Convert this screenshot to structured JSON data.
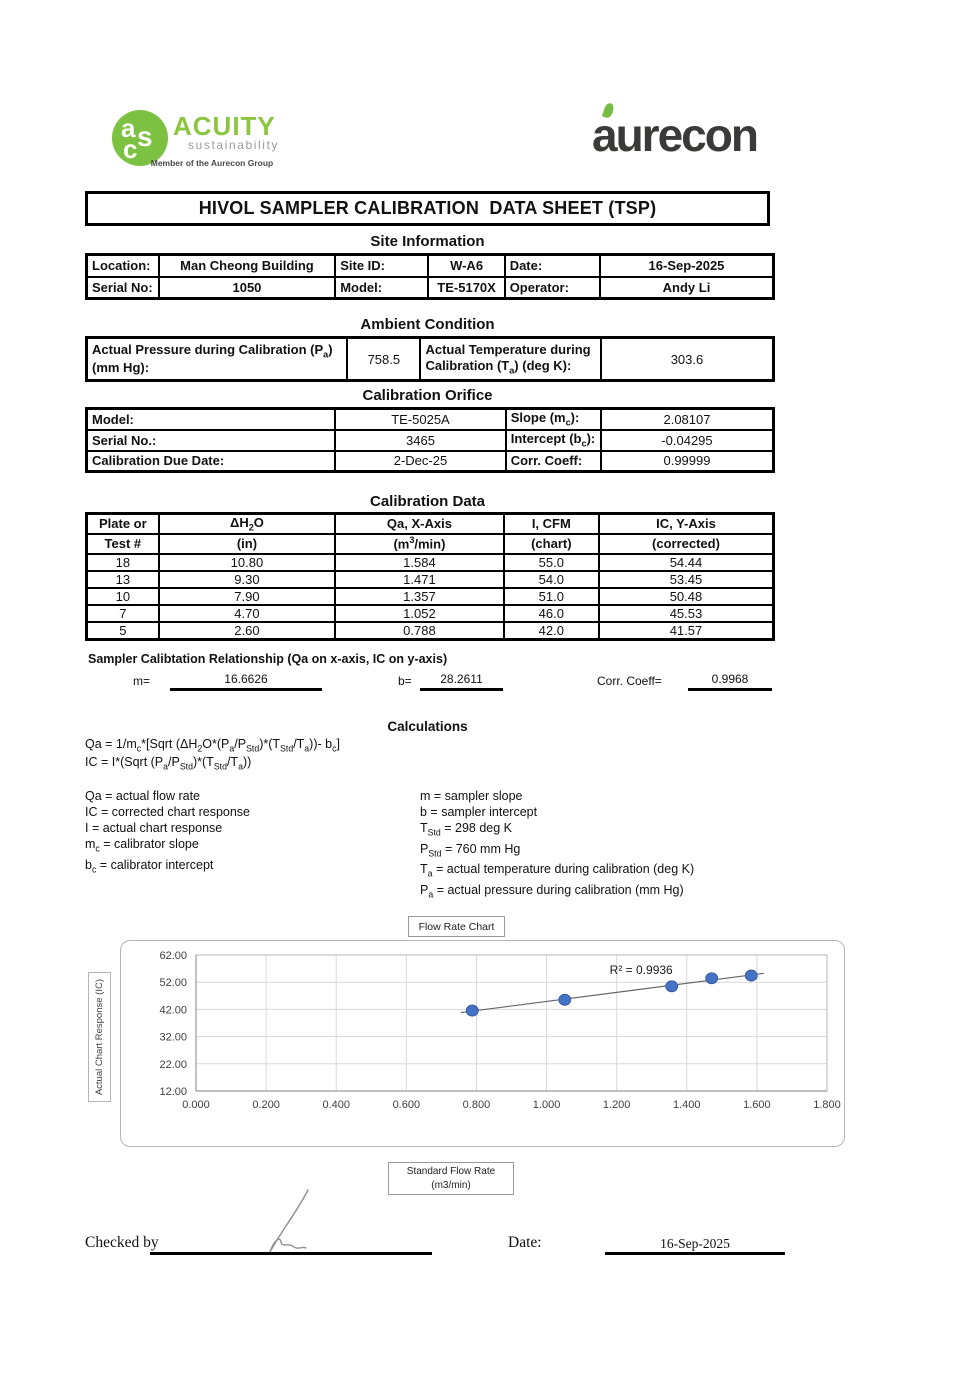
{
  "header": {
    "acuity_monogram": [
      "a",
      "s",
      "c"
    ],
    "acuity_name": "ACUITY",
    "acuity_sub": "sustainability",
    "acuity_member": "Member of the Aurecon Group",
    "aurecon_name": "aurecon"
  },
  "title": "HIVOL SAMPLER CALIBRATION  DATA SHEET (TSP)",
  "colors": {
    "acuity_green": "#7dc142",
    "aurecon_dark": "#3a3a38",
    "leaf_green": "#76bc43",
    "point_blue": "#4472c4",
    "point_edge": "#2f5597",
    "trend_line": "#666666",
    "grid_line": "#d9d9d9",
    "plot_border": "#b5b5b5",
    "axis_line": "#9a9a9a"
  },
  "site_information": {
    "heading": "Site Information",
    "rows": [
      [
        {
          "label": "Location:",
          "value": "Man Cheong Building"
        },
        {
          "label": "Site ID:",
          "value": "W-A6"
        },
        {
          "label": "Date:",
          "value": "16-Sep-2025"
        }
      ],
      [
        {
          "label": "Serial No:",
          "value": "1050"
        },
        {
          "label": "Model:",
          "value": "TE-5170X"
        },
        {
          "label": "Operator:",
          "value": "Andy Li"
        }
      ]
    ]
  },
  "ambient_condition": {
    "heading": "Ambient Condition",
    "pressure_label": "Actual Pressure during Calibration (P_{a}) (mm Hg):",
    "pressure_value": "758.5",
    "temperature_label": "Actual Temperature during Calibration (T_{a}) (deg K):",
    "temperature_value": "303.6"
  },
  "calibration_orifice": {
    "heading": "Calibration Orifice",
    "rows": [
      {
        "label": "Model:",
        "value": "TE-5025A",
        "label2": "Slope (m_{c}):",
        "value2": "2.08107"
      },
      {
        "label": "Serial No.:",
        "value": "3465",
        "label2": "Intercept (b_{c}):",
        "value2": "-0.04295"
      },
      {
        "label": "Calibration Due Date:",
        "value": "2-Dec-25",
        "label2": "Corr. Coeff:",
        "value2": "0.99999"
      }
    ]
  },
  "calibration_data": {
    "heading": "Calibration Data",
    "col_headers_top": [
      "Plate or",
      "ΔH_{2}O",
      "Qa, X-Axis",
      "I, CFM",
      "IC, Y-Axis"
    ],
    "col_headers_bottom": [
      "Test #",
      "(in)",
      "(m^{3}/min)",
      "(chart)",
      "(corrected)"
    ],
    "rows": [
      [
        "18",
        "10.80",
        "1.584",
        "55.0",
        "54.44"
      ],
      [
        "13",
        "9.30",
        "1.471",
        "54.0",
        "53.45"
      ],
      [
        "10",
        "7.90",
        "1.357",
        "51.0",
        "50.48"
      ],
      [
        "7",
        "4.70",
        "1.052",
        "46.0",
        "45.53"
      ],
      [
        "5",
        "2.60",
        "0.788",
        "42.0",
        "41.57"
      ]
    ]
  },
  "relationship": {
    "heading": "Sampler Calibtation Relationship (Qa on x-axis, IC on y-axis)",
    "m_label": "m=",
    "m_value": "16.6626",
    "b_label": "b=",
    "b_value": "28.2611",
    "corr_label": "Corr. Coeff=",
    "corr_value": "0.9968"
  },
  "calculations": {
    "heading": "Calculations",
    "formula_qa": "Qa = 1/m_{c}*[Sqrt (ΔH_{2}O*(P_{a}/P_{Std})*(T_{Std}/T_{a}))- b_{c}]",
    "formula_ic": "IC = I*(Sqrt (P_{a}/P_{Std})*(T_{Std}/T_{a}))",
    "definitions_left": [
      "Qa = actual flow rate",
      "IC = corrected chart response",
      "I = actual chart response",
      "m_{c}  = calibrator slope",
      "b_{c}  = calibrator intercept"
    ],
    "definitions_right": [
      "m = sampler slope",
      "b  = sampler intercept",
      "T_{Std} = 298 deg K",
      "P_{Std} = 760 mm Hg",
      "T_{a} = actual temperature during calibration (deg K)",
      "P_{a} = actual pressure during calibration (mm Hg)"
    ]
  },
  "chart_data": {
    "type": "scatter",
    "title": "Flow Rate Chart",
    "ylabel": "Actual Chart Response (IC)",
    "xlabel": "Standard Flow Rate (m3/min)",
    "xlabel_lines": [
      "Standard Flow Rate",
      "(m3/min)"
    ],
    "x": [
      0.788,
      1.052,
      1.357,
      1.471,
      1.584
    ],
    "y": [
      41.57,
      45.53,
      50.48,
      53.45,
      54.44
    ],
    "xlim": [
      0,
      1.8
    ],
    "ylim": [
      12,
      62
    ],
    "x_ticks": [
      "0.000",
      "0.200",
      "0.400",
      "0.600",
      "0.800",
      "1.000",
      "1.200",
      "1.400",
      "1.600",
      "1.800"
    ],
    "y_ticks": [
      "12.00",
      "22.00",
      "32.00",
      "42.00",
      "52.00",
      "62.00"
    ],
    "r_squared": 0.9936,
    "r_squared_label": "R² = 0.9936",
    "trendline": {
      "x1": 0.755,
      "y1": 40.84,
      "x2": 1.62,
      "y2": 55.26
    },
    "legend": "none",
    "grid": true
  },
  "footer": {
    "checked_by_label": "Checked by",
    "date_label": "Date:",
    "date_value": "16-Sep-2025"
  }
}
